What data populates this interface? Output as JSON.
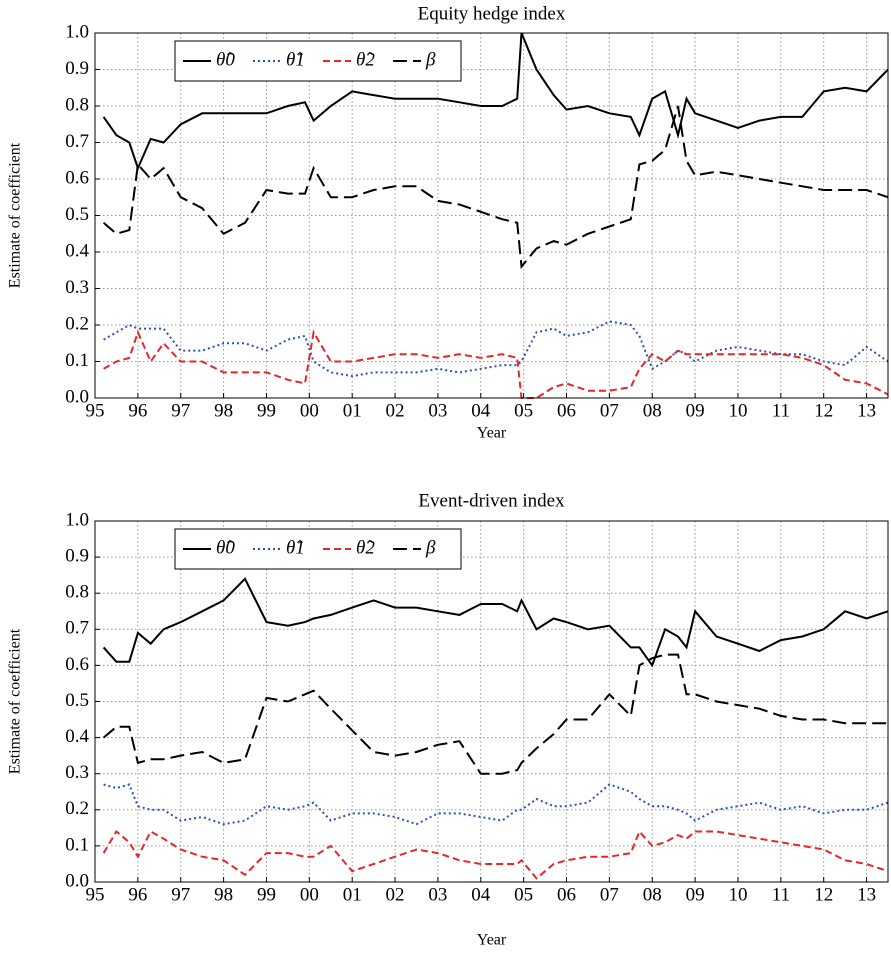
{
  "chart_data": [
    {
      "type": "line",
      "title": "Equity hedge index",
      "xlabel": "Year",
      "ylabel": "Estimate of coefficient",
      "legend": "upper left",
      "grid": true,
      "xlim": [
        1995,
        2013.5
      ],
      "ylim": [
        0,
        1
      ],
      "xticks": [
        {
          "value": 1995,
          "label": "95"
        },
        {
          "value": 1996,
          "label": "96"
        },
        {
          "value": 1997,
          "label": "97"
        },
        {
          "value": 1998,
          "label": "98"
        },
        {
          "value": 1999,
          "label": "99"
        },
        {
          "value": 2000,
          "label": "00"
        },
        {
          "value": 2001,
          "label": "01"
        },
        {
          "value": 2002,
          "label": "02"
        },
        {
          "value": 2003,
          "label": "03"
        },
        {
          "value": 2004,
          "label": "04"
        },
        {
          "value": 2005,
          "label": "05"
        },
        {
          "value": 2006,
          "label": "06"
        },
        {
          "value": 2007,
          "label": "07"
        },
        {
          "value": 2008,
          "label": "08"
        },
        {
          "value": 2009,
          "label": "09"
        },
        {
          "value": 2010,
          "label": "10"
        },
        {
          "value": 2011,
          "label": "11"
        },
        {
          "value": 2012,
          "label": "12"
        },
        {
          "value": 2013,
          "label": "13"
        }
      ],
      "yticks": [
        {
          "value": 0,
          "label": "0.0"
        },
        {
          "value": 0.1,
          "label": "0.1"
        },
        {
          "value": 0.2,
          "label": "0.2"
        },
        {
          "value": 0.3,
          "label": "0.3"
        },
        {
          "value": 0.4,
          "label": "0.4"
        },
        {
          "value": 0.5,
          "label": "0.5"
        },
        {
          "value": 0.6,
          "label": "0.6"
        },
        {
          "value": 0.7,
          "label": "0.7"
        },
        {
          "value": 0.8,
          "label": "0.8"
        },
        {
          "value": 0.9,
          "label": "0.9"
        },
        {
          "value": 1,
          "label": "1.0"
        }
      ],
      "x": [
        1995.2,
        1995.5,
        1995.8,
        1996.0,
        1996.3,
        1996.6,
        1997.0,
        1997.5,
        1998.0,
        1998.5,
        1999.0,
        1999.5,
        1999.9,
        2000.1,
        2000.5,
        2001.0,
        2001.5,
        2002.0,
        2002.5,
        2003.0,
        2003.5,
        2004.0,
        2004.5,
        2004.85,
        2004.95,
        2005.3,
        2005.7,
        2006.0,
        2006.5,
        2007.0,
        2007.5,
        2007.7,
        2008.0,
        2008.3,
        2008.6,
        2008.8,
        2009.0,
        2009.5,
        2010.0,
        2010.5,
        2011.0,
        2011.5,
        2012.0,
        2012.5,
        2013.0,
        2013.5
      ],
      "series": [
        {
          "name": "θ̂0",
          "color": "#000000",
          "linestyle": "solid",
          "values": [
            0.77,
            0.72,
            0.7,
            0.63,
            0.71,
            0.7,
            0.75,
            0.78,
            0.78,
            0.78,
            0.78,
            0.8,
            0.81,
            0.76,
            0.8,
            0.84,
            0.83,
            0.82,
            0.82,
            0.82,
            0.81,
            0.8,
            0.8,
            0.82,
            1.0,
            0.9,
            0.83,
            0.79,
            0.8,
            0.78,
            0.77,
            0.72,
            0.82,
            0.84,
            0.72,
            0.82,
            0.78,
            0.76,
            0.74,
            0.76,
            0.77,
            0.77,
            0.84,
            0.85,
            0.84,
            0.9
          ]
        },
        {
          "name": "θ̂1",
          "color": "#2a4fb8",
          "linestyle": "dotted",
          "values": [
            0.16,
            0.18,
            0.2,
            0.19,
            0.19,
            0.19,
            0.13,
            0.13,
            0.15,
            0.15,
            0.13,
            0.16,
            0.17,
            0.1,
            0.07,
            0.06,
            0.07,
            0.07,
            0.07,
            0.08,
            0.07,
            0.08,
            0.09,
            0.09,
            0.1,
            0.18,
            0.19,
            0.17,
            0.18,
            0.21,
            0.2,
            0.17,
            0.08,
            0.1,
            0.13,
            0.12,
            0.1,
            0.13,
            0.14,
            0.13,
            0.12,
            0.12,
            0.1,
            0.09,
            0.14,
            0.1
          ]
        },
        {
          "name": "θ̂2",
          "color": "#e8262a",
          "linestyle": "dashed",
          "values": [
            0.08,
            0.1,
            0.11,
            0.18,
            0.1,
            0.15,
            0.1,
            0.1,
            0.07,
            0.07,
            0.07,
            0.05,
            0.04,
            0.18,
            0.1,
            0.1,
            0.11,
            0.12,
            0.12,
            0.11,
            0.12,
            0.11,
            0.12,
            0.11,
            0,
            0,
            0.03,
            0.04,
            0.02,
            0.02,
            0.03,
            0.08,
            0.12,
            0.1,
            0.13,
            0.12,
            0.12,
            0.12,
            0.12,
            0.12,
            0.12,
            0.11,
            0.09,
            0.05,
            0.04,
            0.01
          ]
        },
        {
          "name": "β",
          "color": "#000000",
          "linestyle": "longdash",
          "values": [
            0.48,
            0.45,
            0.46,
            0.64,
            0.6,
            0.63,
            0.55,
            0.52,
            0.45,
            0.48,
            0.57,
            0.56,
            0.56,
            0.63,
            0.55,
            0.55,
            0.57,
            0.58,
            0.58,
            0.54,
            0.53,
            0.51,
            0.49,
            0.48,
            0.36,
            0.41,
            0.43,
            0.42,
            0.45,
            0.47,
            0.49,
            0.64,
            0.65,
            0.68,
            0.8,
            0.65,
            0.61,
            0.62,
            0.61,
            0.6,
            0.59,
            0.58,
            0.57,
            0.57,
            0.57,
            0.55
          ]
        }
      ]
    },
    {
      "type": "line",
      "title": "Event-driven index",
      "xlabel": "Year",
      "ylabel": "Estimate of coefficient",
      "legend": "upper left",
      "grid": true,
      "xlim": [
        1995,
        2013.5
      ],
      "ylim": [
        0,
        1
      ],
      "xticks": [
        {
          "value": 1995,
          "label": "95"
        },
        {
          "value": 1996,
          "label": "96"
        },
        {
          "value": 1997,
          "label": "97"
        },
        {
          "value": 1998,
          "label": "98"
        },
        {
          "value": 1999,
          "label": "99"
        },
        {
          "value": 2000,
          "label": "00"
        },
        {
          "value": 2001,
          "label": "01"
        },
        {
          "value": 2002,
          "label": "02"
        },
        {
          "value": 2003,
          "label": "03"
        },
        {
          "value": 2004,
          "label": "04"
        },
        {
          "value": 2005,
          "label": "05"
        },
        {
          "value": 2006,
          "label": "06"
        },
        {
          "value": 2007,
          "label": "07"
        },
        {
          "value": 2008,
          "label": "08"
        },
        {
          "value": 2009,
          "label": "09"
        },
        {
          "value": 2010,
          "label": "10"
        },
        {
          "value": 2011,
          "label": "11"
        },
        {
          "value": 2012,
          "label": "12"
        },
        {
          "value": 2013,
          "label": "13"
        }
      ],
      "yticks": [
        {
          "value": 0,
          "label": "0.0"
        },
        {
          "value": 0.1,
          "label": "0.1"
        },
        {
          "value": 0.2,
          "label": "0.2"
        },
        {
          "value": 0.3,
          "label": "0.3"
        },
        {
          "value": 0.4,
          "label": "0.4"
        },
        {
          "value": 0.5,
          "label": "0.5"
        },
        {
          "value": 0.6,
          "label": "0.6"
        },
        {
          "value": 0.7,
          "label": "0.7"
        },
        {
          "value": 0.8,
          "label": "0.8"
        },
        {
          "value": 0.9,
          "label": "0.9"
        },
        {
          "value": 1,
          "label": "1.0"
        }
      ],
      "x": [
        1995.2,
        1995.5,
        1995.8,
        1996.0,
        1996.3,
        1996.6,
        1997.0,
        1997.5,
        1998.0,
        1998.5,
        1999.0,
        1999.5,
        1999.9,
        2000.1,
        2000.5,
        2001.0,
        2001.5,
        2002.0,
        2002.5,
        2003.0,
        2003.5,
        2004.0,
        2004.5,
        2004.85,
        2004.95,
        2005.3,
        2005.7,
        2006.0,
        2006.5,
        2007.0,
        2007.5,
        2007.7,
        2008.0,
        2008.3,
        2008.6,
        2008.8,
        2009.0,
        2009.5,
        2010.0,
        2010.5,
        2011.0,
        2011.5,
        2012.0,
        2012.5,
        2013.0,
        2013.5
      ],
      "series": [
        {
          "name": "θ̂0",
          "color": "#000000",
          "linestyle": "solid",
          "values": [
            0.65,
            0.61,
            0.61,
            0.69,
            0.66,
            0.7,
            0.72,
            0.75,
            0.78,
            0.84,
            0.72,
            0.71,
            0.72,
            0.73,
            0.74,
            0.76,
            0.78,
            0.76,
            0.76,
            0.75,
            0.74,
            0.77,
            0.77,
            0.75,
            0.78,
            0.7,
            0.73,
            0.72,
            0.7,
            0.71,
            0.65,
            0.65,
            0.6,
            0.7,
            0.68,
            0.65,
            0.75,
            0.68,
            0.66,
            0.64,
            0.67,
            0.68,
            0.7,
            0.75,
            0.73,
            0.75
          ]
        },
        {
          "name": "θ̂1",
          "color": "#2a4fb8",
          "linestyle": "dotted",
          "values": [
            0.27,
            0.26,
            0.27,
            0.21,
            0.2,
            0.2,
            0.17,
            0.18,
            0.16,
            0.17,
            0.21,
            0.2,
            0.21,
            0.22,
            0.17,
            0.19,
            0.19,
            0.18,
            0.16,
            0.19,
            0.19,
            0.18,
            0.17,
            0.2,
            0.2,
            0.23,
            0.21,
            0.21,
            0.22,
            0.27,
            0.25,
            0.23,
            0.21,
            0.21,
            0.2,
            0.19,
            0.17,
            0.2,
            0.21,
            0.22,
            0.2,
            0.21,
            0.19,
            0.2,
            0.2,
            0.22
          ]
        },
        {
          "name": "θ̂2",
          "color": "#e8262a",
          "linestyle": "dashed",
          "values": [
            0.08,
            0.14,
            0.11,
            0.07,
            0.14,
            0.12,
            0.09,
            0.07,
            0.06,
            0.02,
            0.08,
            0.08,
            0.07,
            0.07,
            0.1,
            0.03,
            0.05,
            0.07,
            0.09,
            0.08,
            0.06,
            0.05,
            0.05,
            0.05,
            0.06,
            0.01,
            0.05,
            0.06,
            0.07,
            0.07,
            0.08,
            0.14,
            0.1,
            0.11,
            0.13,
            0.12,
            0.14,
            0.14,
            0.13,
            0.12,
            0.11,
            0.1,
            0.09,
            0.06,
            0.05,
            0.03
          ]
        },
        {
          "name": "β",
          "color": "#000000",
          "linestyle": "longdash",
          "values": [
            0.4,
            0.43,
            0.43,
            0.33,
            0.34,
            0.34,
            0.35,
            0.36,
            0.33,
            0.34,
            0.51,
            0.5,
            0.52,
            0.53,
            0.48,
            0.42,
            0.36,
            0.35,
            0.36,
            0.38,
            0.39,
            0.3,
            0.3,
            0.31,
            0.33,
            0.37,
            0.41,
            0.45,
            0.45,
            0.52,
            0.46,
            0.6,
            0.62,
            0.63,
            0.63,
            0.52,
            0.52,
            0.5,
            0.49,
            0.48,
            0.46,
            0.45,
            0.45,
            0.44,
            0.44,
            0.44
          ]
        }
      ]
    }
  ]
}
